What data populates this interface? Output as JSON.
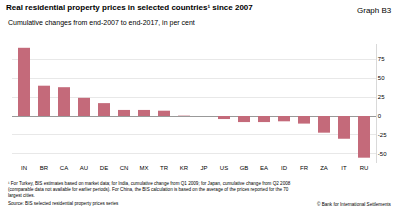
{
  "chart_data": {
    "type": "bar",
    "title": "Real residential property prices in selected countries¹ since 2007",
    "graph_label": "Graph B3",
    "subtitle": "Cumulative changes from end-2007 to end-2017, in per cent",
    "categories": [
      "IN",
      "BR",
      "CA",
      "AU",
      "DE",
      "CN",
      "MX",
      "TR",
      "KR",
      "JP",
      "US",
      "GB",
      "EA",
      "ID",
      "FR",
      "ZA",
      "IT",
      "RU"
    ],
    "values": [
      90,
      40,
      38,
      24,
      17,
      8,
      8,
      7,
      0.5,
      0,
      -4,
      -8,
      -8,
      -7,
      -10,
      -22,
      -30,
      -55
    ],
    "color": "#c46a7a",
    "ylim": [
      -62,
      95
    ],
    "yticks": [
      -50,
      -25,
      0,
      25,
      50,
      75
    ],
    "grid": true,
    "footnote": [
      "¹ For Turkey, BIS estimates based on market data; for India, cumulative change from Q1 2009; for Japan, cumulative change from Q2 2008",
      "(comparable data not available for earlier periods). For China, the BIS calculation is based on the average of the prices reported for the 70",
      "largest cities."
    ],
    "source": "Source: BIS selected residential property prices series",
    "copyright": "© Bank for International Settlements"
  }
}
